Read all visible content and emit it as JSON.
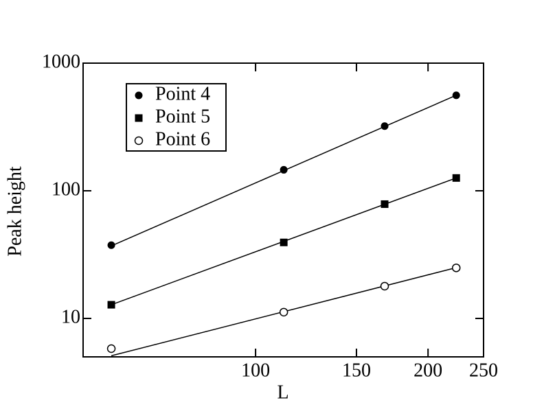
{
  "chart_data": {
    "type": "scatter",
    "x_label": "L",
    "y_label": "Peak height",
    "x": [
      56,
      112,
      168,
      224
    ],
    "series": [
      {
        "name": "Point 4",
        "color": "#000000",
        "marker": "filled-circle",
        "values": [
          37.5,
          146,
          321,
          560
        ]
      },
      {
        "name": "Point 5",
        "color": "#000000",
        "marker": "filled-square",
        "values": [
          12.8,
          39.4,
          78.6,
          126
        ]
      },
      {
        "name": "Point 6",
        "color": "#000000",
        "marker": "open-circle",
        "values": [
          5.8,
          11.2,
          17.9,
          24.9
        ]
      }
    ],
    "fit_lines": [
      {
        "x": [
          56,
          224
        ],
        "values": [
          37,
          560
        ]
      },
      {
        "x": [
          56,
          224
        ],
        "values": [
          12.8,
          126
        ]
      },
      {
        "x": [
          56,
          224
        ],
        "values": [
          5.1,
          25
        ]
      }
    ],
    "xlim": [
      50,
      250
    ],
    "ylim": [
      5,
      1000
    ],
    "xticks": [
      100,
      150,
      200,
      250
    ],
    "yticks": [
      10,
      100,
      1000
    ],
    "xscale": "log",
    "yscale": "log",
    "grid": false,
    "legend": "upper-left"
  }
}
